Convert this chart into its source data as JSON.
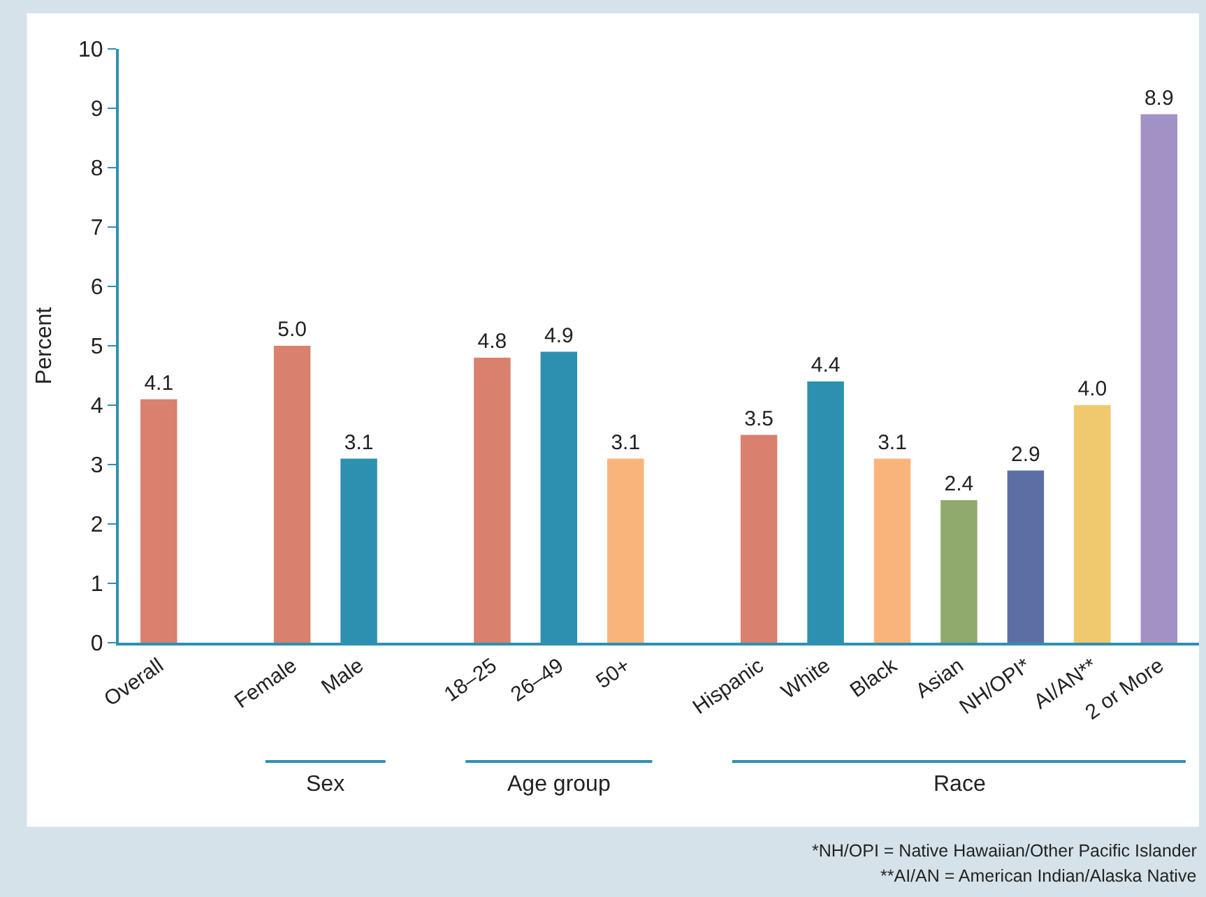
{
  "chart_data": {
    "type": "bar",
    "ylabel": "Percent",
    "categories": [
      "Overall",
      null,
      "Female",
      "Male",
      null,
      "18–25",
      "26–49",
      "50+",
      null,
      "Hispanic",
      "White",
      "Black",
      "Asian",
      "NH/OPI*",
      "AI/AN**",
      "2 or More"
    ],
    "values": [
      4.1,
      null,
      5.0,
      3.1,
      null,
      4.8,
      4.9,
      3.1,
      null,
      3.5,
      4.4,
      3.1,
      2.4,
      2.9,
      4.0,
      8.9
    ],
    "colors": [
      "#d9806e",
      null,
      "#d9806e",
      "#2e90b0",
      null,
      "#d9806e",
      "#2e90b0",
      "#f9b47c",
      null,
      "#d9806e",
      "#2e90b0",
      "#f9b47c",
      "#8faa6c",
      "#5b6fa5",
      "#f0c86e",
      "#a291c5"
    ],
    "value_labels": [
      "4.1",
      null,
      "5.0",
      "3.1",
      null,
      "4.8",
      "4.9",
      "3.1",
      null,
      "3.5",
      "4.4",
      "3.1",
      "2.4",
      "2.9",
      "4.0",
      "8.9"
    ],
    "ylim": [
      0,
      10
    ],
    "yticks": [
      0,
      1,
      2,
      3,
      4,
      5,
      6,
      7,
      8,
      9,
      10
    ],
    "annotations": [
      "Sex",
      "Age group",
      "Race",
      "*NH/OPI = Native Hawaiian/Other Pacific Islander",
      "**AI/AN = American Indian/Alaska Native"
    ]
  }
}
